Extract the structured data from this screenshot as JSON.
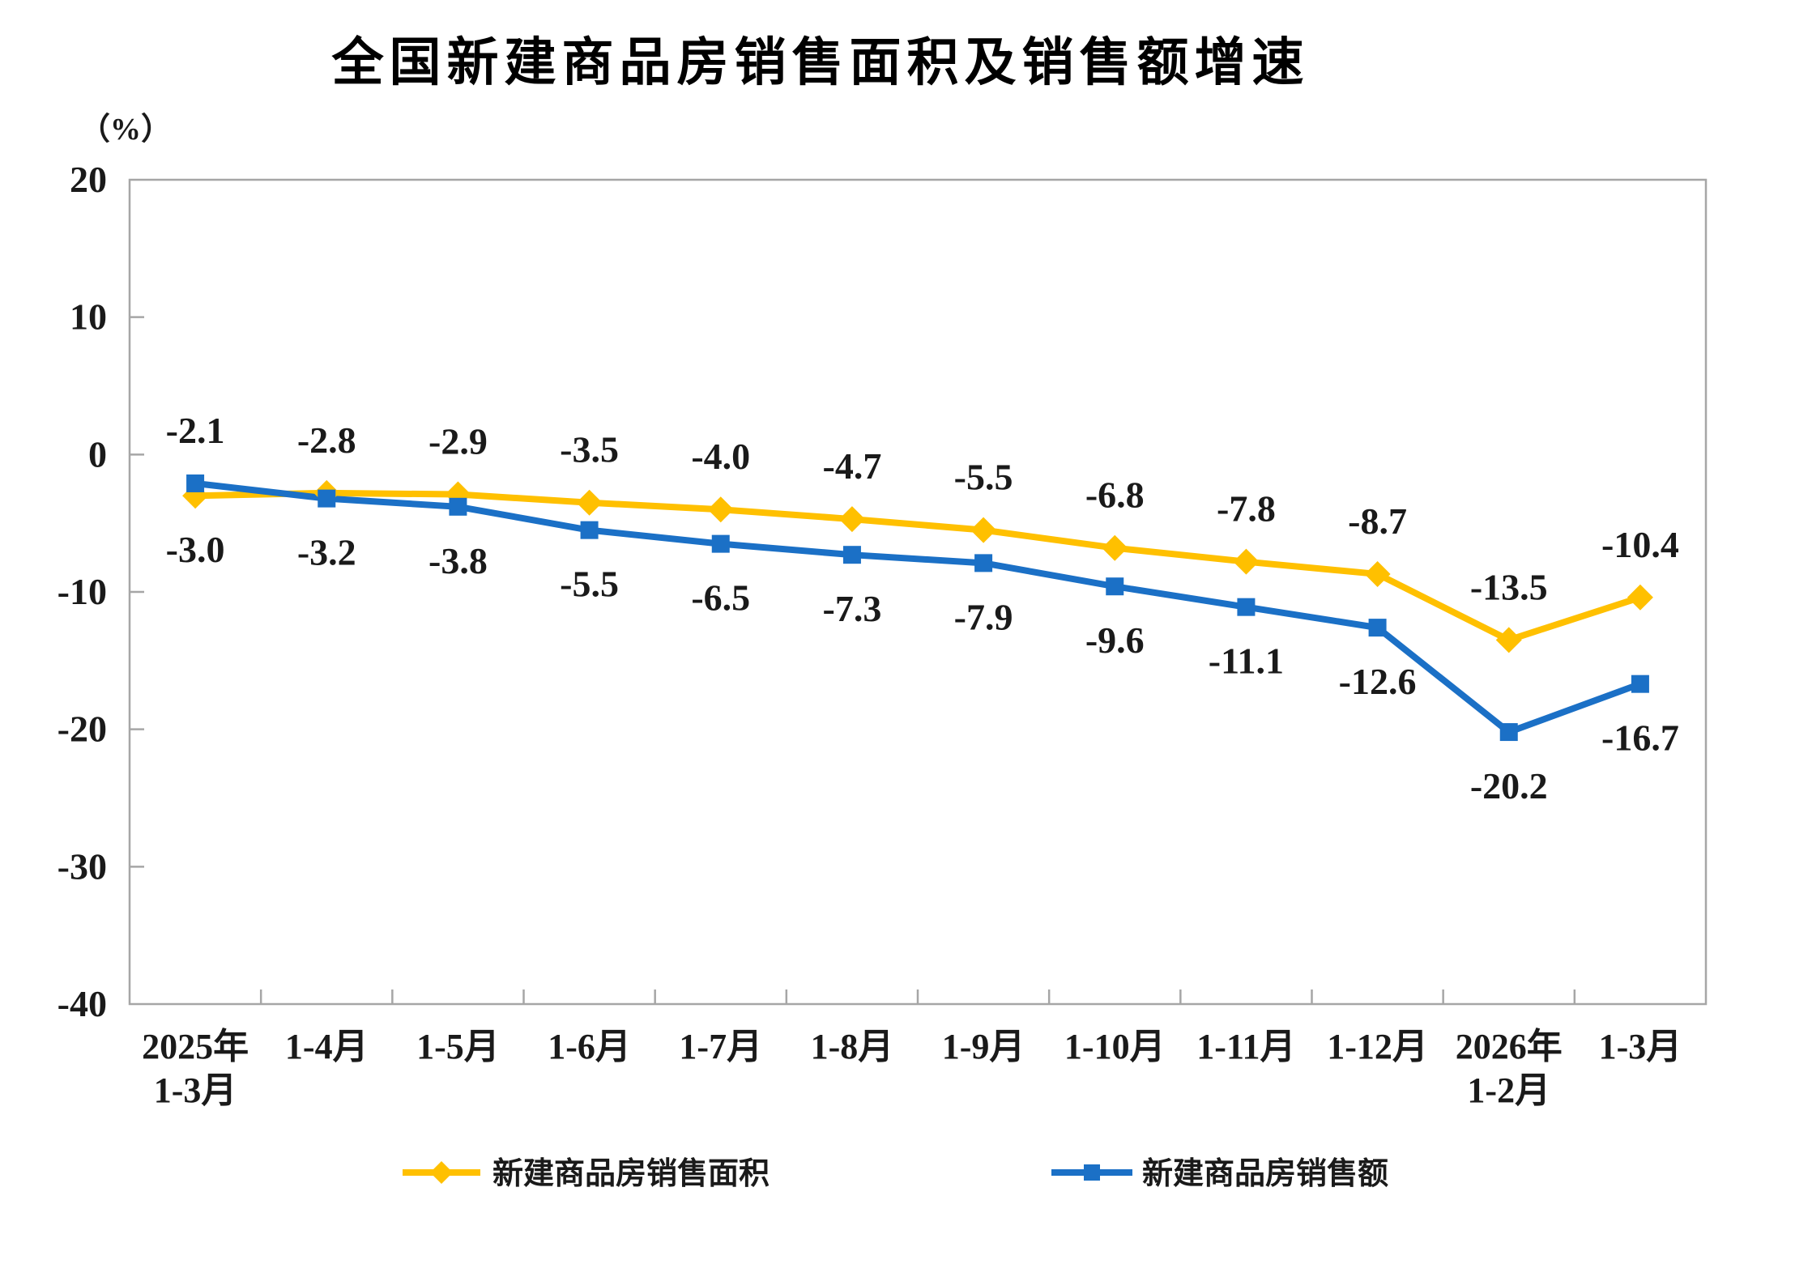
{
  "page": {
    "background": "#FFFFFF"
  },
  "chart_data": {
    "type": "line",
    "title": "全国新建商品房销售面积及销售额增速",
    "unit_label": "（%）",
    "categories": [
      [
        "2025年",
        "1-3月"
      ],
      [
        "1-4月"
      ],
      [
        "1-5月"
      ],
      [
        "1-6月"
      ],
      [
        "1-7月"
      ],
      [
        "1-8月"
      ],
      [
        "1-9月"
      ],
      [
        "1-10月"
      ],
      [
        "1-11月"
      ],
      [
        "1-12月"
      ],
      [
        "2026年",
        "1-2月"
      ],
      [
        "1-3月"
      ]
    ],
    "series": [
      {
        "name": "新建商品房销售面积",
        "color": "#FFC000",
        "marker": "diamond",
        "values": [
          -3.0,
          -2.8,
          -2.9,
          -3.5,
          -4.0,
          -4.7,
          -5.5,
          -6.8,
          -7.8,
          -8.7,
          -13.5,
          -10.4
        ],
        "label_side": "above",
        "label_side_first_point": "below"
      },
      {
        "name": "新建商品房销售额",
        "color": "#1B70C6",
        "marker": "square",
        "values": [
          -2.1,
          -3.2,
          -3.8,
          -5.5,
          -6.5,
          -7.3,
          -7.9,
          -9.6,
          -11.1,
          -12.6,
          -20.2,
          -16.7
        ],
        "label_side": "below",
        "label_side_first_point": "above"
      }
    ],
    "y_axis": {
      "min": -40,
      "max": 20,
      "step": 10,
      "tick_labels": [
        "20",
        "10",
        "0",
        "-10",
        "-20",
        "-30",
        "-40"
      ]
    },
    "x_axis": {
      "tick_marks": "between-categories"
    },
    "grid": "none",
    "legend_position": "bottom",
    "colors": {
      "axis": "#A6A6A6",
      "label_text": "#1A1A1A",
      "title_text": "#000000"
    }
  }
}
